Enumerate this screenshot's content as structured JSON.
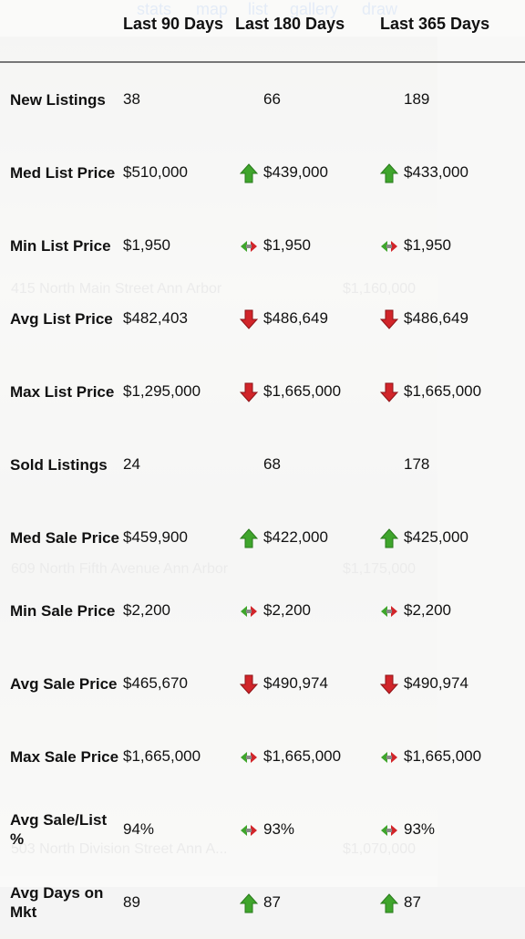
{
  "tabs": [
    "stats",
    "map",
    "list",
    "gallery",
    "draw"
  ],
  "listings": [
    {
      "address": "415 North Main Street Ann Arbor",
      "price": "$1,160,000"
    },
    {
      "address": "609 North Fifth Avenue Ann Arbor",
      "price": "$1,175,000"
    },
    {
      "address": "503 North Division Street Ann A...",
      "price": "$1,070,000"
    }
  ],
  "table": {
    "columns": [
      "Last 90 Days",
      "Last 180 Days",
      "Last 365 Days"
    ],
    "rows": [
      {
        "label": "New Listings",
        "cells": [
          {
            "value": "38"
          },
          {
            "value": "66"
          },
          {
            "value": "189"
          }
        ]
      },
      {
        "label": "Med List Price",
        "cells": [
          {
            "value": "$510,000"
          },
          {
            "value": "$439,000",
            "trend": "up"
          },
          {
            "value": "$433,000",
            "trend": "up"
          }
        ]
      },
      {
        "label": "Min List Price",
        "cells": [
          {
            "value": "$1,950"
          },
          {
            "value": "$1,950",
            "trend": "flat"
          },
          {
            "value": "$1,950",
            "trend": "flat"
          }
        ]
      },
      {
        "label": "Avg List Price",
        "cells": [
          {
            "value": "$482,403"
          },
          {
            "value": "$486,649",
            "trend": "down"
          },
          {
            "value": "$486,649",
            "trend": "down"
          }
        ]
      },
      {
        "label": "Max List Price",
        "cells": [
          {
            "value": "$1,295,000"
          },
          {
            "value": "$1,665,000",
            "trend": "down"
          },
          {
            "value": "$1,665,000",
            "trend": "down"
          }
        ]
      },
      {
        "label": "Sold Listings",
        "cells": [
          {
            "value": "24"
          },
          {
            "value": "68"
          },
          {
            "value": "178"
          }
        ]
      },
      {
        "label": "Med Sale Price",
        "cells": [
          {
            "value": "$459,900"
          },
          {
            "value": "$422,000",
            "trend": "up"
          },
          {
            "value": "$425,000",
            "trend": "up"
          }
        ]
      },
      {
        "label": "Min Sale Price",
        "cells": [
          {
            "value": "$2,200"
          },
          {
            "value": "$2,200",
            "trend": "flat"
          },
          {
            "value": "$2,200",
            "trend": "flat"
          }
        ]
      },
      {
        "label": "Avg Sale Price",
        "cells": [
          {
            "value": "$465,670"
          },
          {
            "value": "$490,974",
            "trend": "down"
          },
          {
            "value": "$490,974",
            "trend": "down"
          }
        ]
      },
      {
        "label": "Max Sale Price",
        "cells": [
          {
            "value": "$1,665,000"
          },
          {
            "value": "$1,665,000",
            "trend": "flat"
          },
          {
            "value": "$1,665,000",
            "trend": "flat"
          }
        ]
      },
      {
        "label": "Avg Sale/List %",
        "cells": [
          {
            "value": "94%"
          },
          {
            "value": "93%",
            "trend": "flat"
          },
          {
            "value": "93%",
            "trend": "flat"
          }
        ]
      },
      {
        "label": "Avg Days on Mkt",
        "cells": [
          {
            "value": "89"
          },
          {
            "value": "87",
            "trend": "up"
          },
          {
            "value": "87",
            "trend": "up"
          }
        ]
      }
    ]
  }
}
